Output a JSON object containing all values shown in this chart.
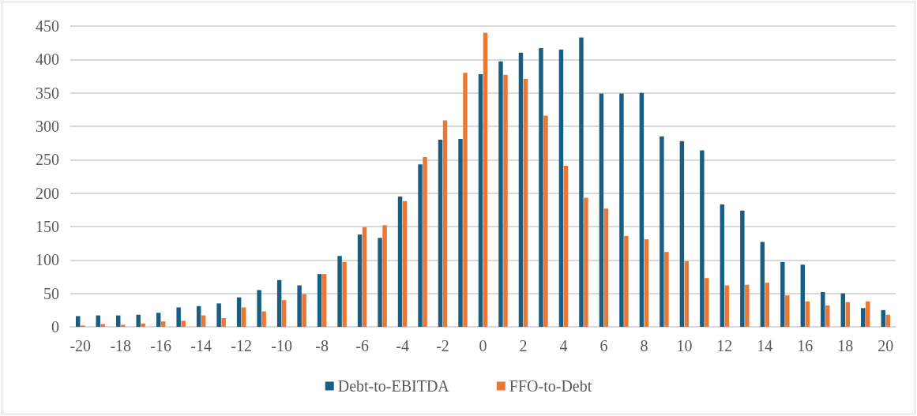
{
  "chart_data": {
    "type": "bar",
    "categories": [
      "-20",
      null,
      "-18",
      null,
      "-16",
      null,
      "-14",
      null,
      "-12",
      null,
      "-10",
      null,
      "-8",
      null,
      "-6",
      null,
      "-4",
      null,
      "-2",
      null,
      "0",
      null,
      "2",
      null,
      "4",
      null,
      "6",
      null,
      "8",
      null,
      "10",
      null,
      "12",
      null,
      "14",
      null,
      "16",
      null,
      "18",
      null,
      "20"
    ],
    "series": [
      {
        "name": "Debt-to-EBITDA",
        "color": "#185e82",
        "values": [
          16,
          17,
          17,
          18,
          21,
          29,
          31,
          35,
          44,
          55,
          70,
          62,
          79,
          106,
          138,
          133,
          195,
          243,
          280,
          281,
          378,
          397,
          410,
          417,
          415,
          433,
          349,
          349,
          350,
          285,
          278,
          264,
          183,
          174,
          127,
          97,
          93,
          52,
          50,
          28,
          25
        ]
      },
      {
        "name": "FFO-to-Debt",
        "color": "#ec7634",
        "values": [
          2,
          4,
          3,
          5,
          8,
          9,
          17,
          13,
          29,
          23,
          40,
          49,
          79,
          97,
          149,
          152,
          188,
          254,
          309,
          380,
          440,
          377,
          371,
          316,
          241,
          193,
          177,
          136,
          131,
          112,
          98,
          73,
          62,
          63,
          66,
          47,
          38,
          32,
          37,
          38,
          18
        ]
      }
    ],
    "ylim": [
      0,
      450
    ],
    "yticks": [
      0,
      50,
      100,
      150,
      200,
      250,
      300,
      350,
      400,
      450
    ],
    "grid": "y",
    "legend": "bottom"
  }
}
